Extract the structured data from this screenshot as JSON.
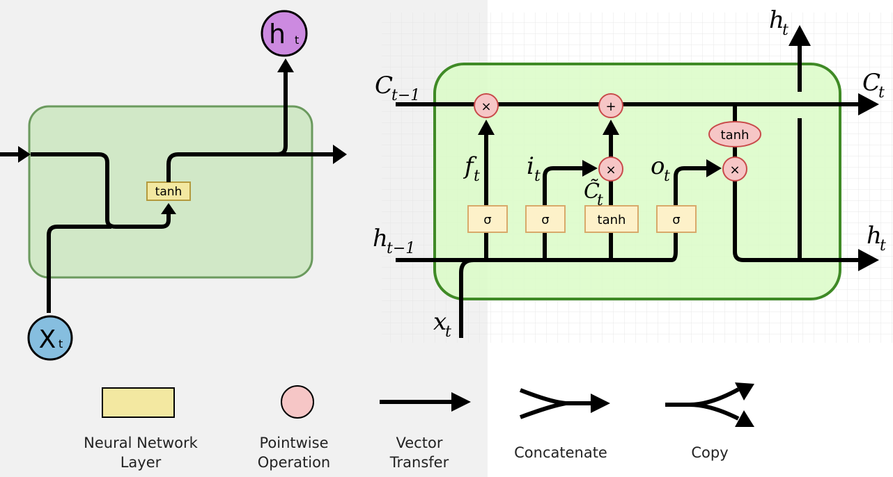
{
  "colors": {
    "left_panel_bg": "#f1f1f1",
    "rnn_cell_fill": "#d1e8c7",
    "rnn_cell_stroke": "#6b9a5e",
    "lstm_cell_fill": "#dafbc7",
    "lstm_cell_stroke": "#3f8a26",
    "layer_fill": "#fdf1c9",
    "layer_stroke": "#d8a96a",
    "rnn_layer_fill": "#f3e8a1",
    "op_fill": "#f6c6c6",
    "op_stroke": "#c84a4a",
    "h_node": "#cc8ae0",
    "x_node": "#86bedf",
    "grid": "#e6e6e6"
  },
  "rnn": {
    "h_node": "h",
    "h_sub": "t",
    "x_node": "X",
    "x_sub": "t",
    "layer_label": "tanh"
  },
  "lstm": {
    "labels": {
      "c_prev": "C",
      "c_prev_sub": "t−1",
      "c_next": "C",
      "c_next_sub": "t",
      "h_prev": "h",
      "h_prev_sub": "t−1",
      "h_out_right": "h",
      "h_out_right_sub": "t",
      "h_out_top": "h",
      "h_out_top_sub": "t",
      "x_in": "x",
      "x_in_sub": "t",
      "f": "f",
      "f_sub": "t",
      "i": "i",
      "i_sub": "t",
      "o": "o",
      "o_sub": "t",
      "c_tilde": "C̃",
      "c_tilde_sub": "t"
    },
    "layers": [
      "σ",
      "σ",
      "tanh",
      "σ"
    ],
    "ops": {
      "forget_mult": "×",
      "add": "+",
      "input_mult": "×",
      "output_mult": "×",
      "tanh": "tanh"
    }
  },
  "legend": {
    "items": [
      {
        "label_line1": "Neural Network",
        "label_line2": "Layer"
      },
      {
        "label_line1": "Pointwise",
        "label_line2": "Operation"
      },
      {
        "label_line1": "Vector",
        "label_line2": "Transfer"
      },
      {
        "label_line1": "Concatenate",
        "label_line2": ""
      },
      {
        "label_line1": "Copy",
        "label_line2": ""
      }
    ]
  }
}
